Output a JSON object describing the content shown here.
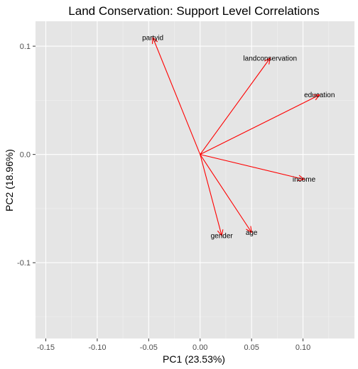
{
  "chart_data": {
    "type": "scatter",
    "subtype": "pca-biplot-vectors",
    "title": "Land Conservation: Support Level Correlations",
    "xlabel": "PC1 (23.53%)",
    "ylabel": "PC2 (18.96%)",
    "xlim": [
      -0.16,
      0.15
    ],
    "ylim": [
      -0.17,
      0.123
    ],
    "x_ticks": [
      -0.15,
      -0.1,
      -0.05,
      0.0,
      0.05,
      0.1
    ],
    "x_tick_labels": [
      "-0.15",
      "-0.10",
      "-0.05",
      "0.00",
      "0.05",
      "0.10"
    ],
    "y_ticks": [
      0.1,
      0.0,
      -0.1
    ],
    "y_tick_labels": [
      "0.1",
      "0.0",
      "-0.1"
    ],
    "grid": true,
    "background": "#e5e5e5",
    "vector_color": "#ff0000",
    "origin": [
      0,
      0
    ],
    "vectors": [
      {
        "name": "partyid",
        "x": -0.046,
        "y": 0.108
      },
      {
        "name": "landconservation",
        "x": 0.068,
        "y": 0.089
      },
      {
        "name": "education",
        "x": 0.116,
        "y": 0.055
      },
      {
        "name": "income",
        "x": 0.101,
        "y": -0.023
      },
      {
        "name": "age",
        "x": 0.05,
        "y": -0.072
      },
      {
        "name": "gender",
        "x": 0.021,
        "y": -0.075
      }
    ]
  }
}
